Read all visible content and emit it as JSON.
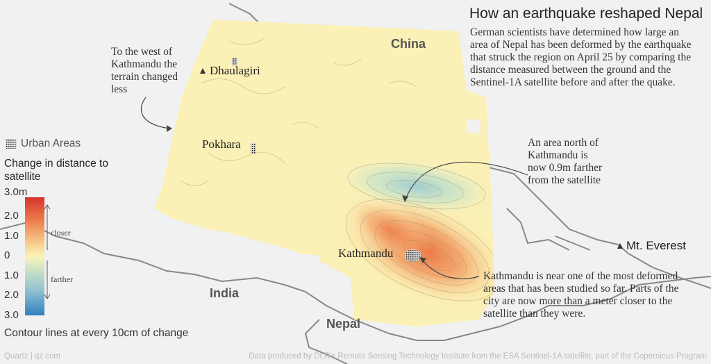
{
  "title": "How an earthquake reshaped Nepal",
  "description": "German scientists have determined how large an area of Nepal has been deformed by the earthquake that struck the region on April 25 by comparing the distance measured between the ground and the Sentinel-1A satellite before and after the quake.",
  "countries": {
    "china": "China",
    "india": "India",
    "nepal": "Nepal"
  },
  "places": {
    "dhaulagiri": "Dhaulagiri",
    "pokhara": "Pokhara",
    "kathmandu": "Kathmandu",
    "everest": "Mt. Everest"
  },
  "annotations": {
    "west": "To the west of Kathmandu the terrain changed less",
    "north": "An area north of Kathmandu is now 0.9m farther from the satellite",
    "kathmandu": "Kathmandu is near one of the most deformed areas that has been studied so far. Parts of the city are now more than a meter closer to the satellite than they were."
  },
  "legend": {
    "urban": "Urban Areas",
    "heading": "Change in distance to satellite",
    "ticks": [
      "3.0m",
      "2.0",
      "1.0",
      "0",
      "1.0",
      "2.0",
      "3.0"
    ],
    "closer": "closer",
    "farther": "farther",
    "contours": "Contour lines at every 10cm of change",
    "colors": {
      "closer_max": "#d7332a",
      "closer_mid": "#f29a5c",
      "zero": "#fbf3ba",
      "farther_mid": "#9fcbc9",
      "farther_max": "#2f7fbf"
    }
  },
  "footer": {
    "credit": "Quartz | qz.com",
    "source": "Data produced by DLR's Remote Sensing Technology Institute from the ESA Sentinel-1A satellite, part of the Copernicus Program"
  }
}
